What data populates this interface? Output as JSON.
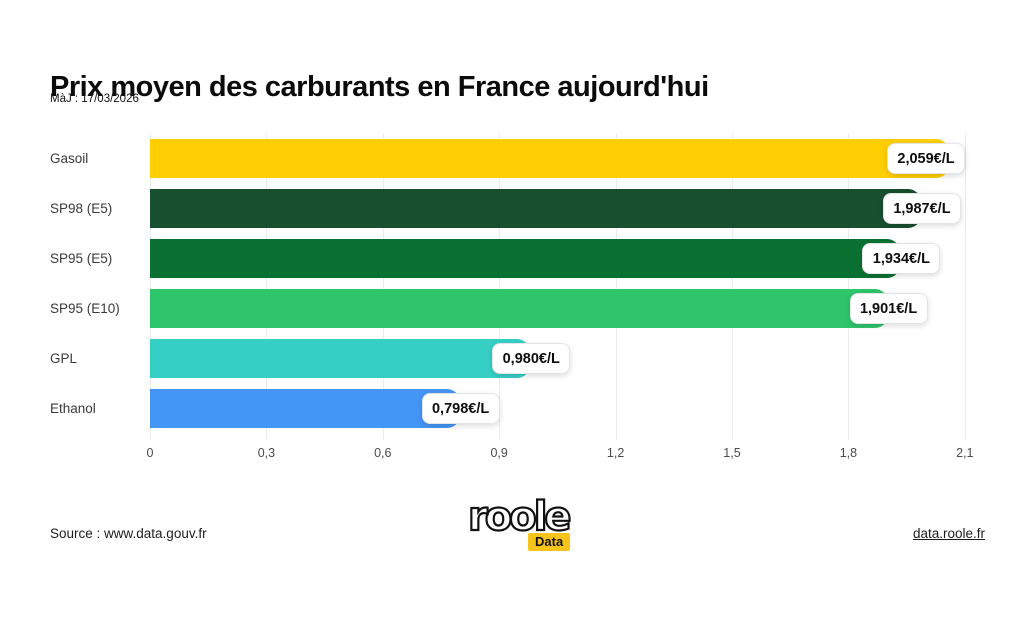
{
  "header": {
    "title": "Prix moyen des carburants en France aujourd'hui",
    "subtitle": "MàJ : 17/03/2026"
  },
  "chart_data": {
    "type": "bar",
    "orientation": "horizontal",
    "title": "Prix moyen des carburants en France aujourd'hui",
    "categories": [
      "Gasoil",
      "SP98 (E5)",
      "SP95 (E5)",
      "SP95 (E10)",
      "GPL",
      "Ethanol"
    ],
    "values": [
      2.059,
      1.987,
      1.934,
      1.901,
      0.98,
      0.798
    ],
    "value_labels": [
      "2,059€/L",
      "1,987€/L",
      "1,934€/L",
      "1,901€/L",
      "0,980€/L",
      "0,798€/L"
    ],
    "bar_colors": [
      "#FFCE03",
      "#184F2E",
      "#0B7132",
      "#2FC56A",
      "#36CFC5",
      "#4496F5"
    ],
    "xlabel": "",
    "ylabel": "",
    "xlim": [
      0,
      2.1
    ],
    "xticks": [
      0,
      0.3,
      0.6,
      0.9,
      1.2,
      1.5,
      1.8,
      2.1
    ],
    "xtick_labels": [
      "0",
      "0,3",
      "0,6",
      "0,9",
      "1,2",
      "1,5",
      "1,8",
      "2,1"
    ],
    "grid": true,
    "legend": "none"
  },
  "footer": {
    "source": "Source : www.data.gouv.fr",
    "link": "data.roole.fr",
    "logo_text": "roole",
    "logo_badge": "Data",
    "logo_badge_color": "#F7C41B"
  }
}
